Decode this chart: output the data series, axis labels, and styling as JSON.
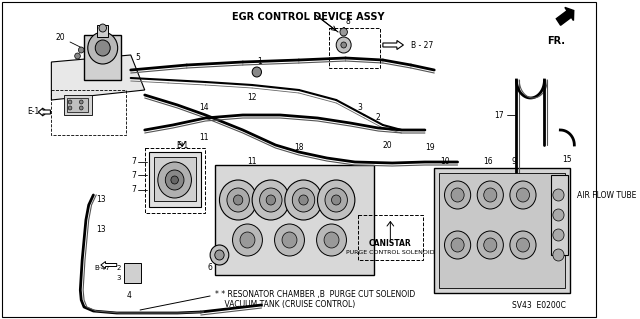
{
  "bg_color": "#f5f5f0",
  "fig_width": 6.4,
  "fig_height": 3.19,
  "dpi": 100,
  "title": "EGR CONTROL DEVICE ASSY",
  "fr_label": "FR.",
  "air_flow_label": "AIR FLOW TUBE",
  "b27_label": "B - 27",
  "canistar_label": "CANISTAR",
  "purge_label": "PURGE CONTROL SOLENOID",
  "bottom1": "* RESONATOR CHAMBER ,B  PURGE CUT SOLENOID",
  "bottom2": "  VACUUM TANK (CRUISE CONTROL)",
  "code": "SV43  E0200C"
}
